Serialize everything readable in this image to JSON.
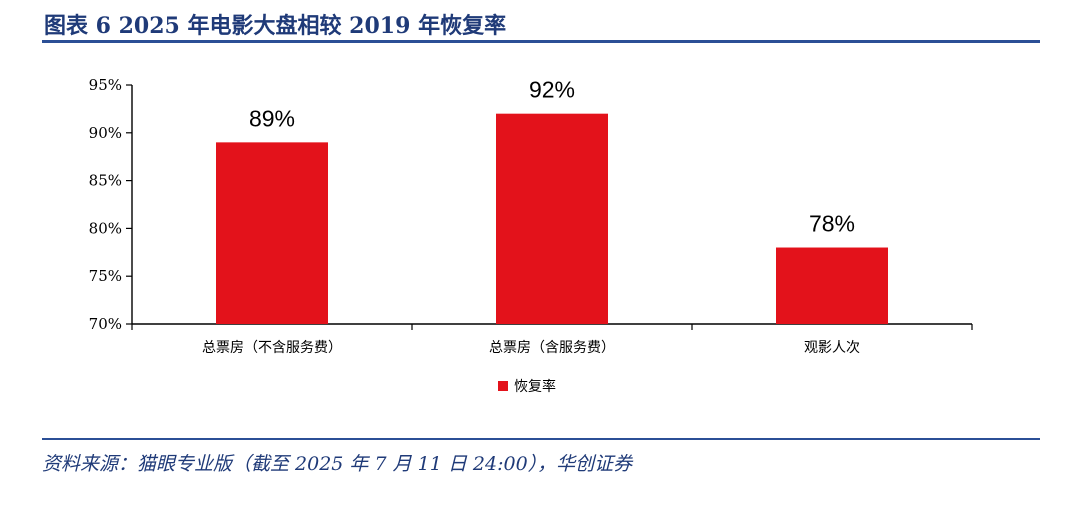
{
  "figure": {
    "title": "图表 6 2025 年电影大盘相较 2019 年恢复率",
    "source": "资料来源：猫眼专业版（截至 2025 年 7 月 11 日 24:00），华创证券"
  },
  "colors": {
    "accent": "#2b4f96",
    "bar": "#e3121b"
  },
  "chart_data": {
    "type": "bar",
    "categories": [
      "总票房（不含服务费）",
      "总票房（含服务费）",
      "观影人次"
    ],
    "series": [
      {
        "name": "恢复率",
        "values": [
          89,
          92,
          78
        ]
      }
    ],
    "data_labels": [
      "89%",
      "92%",
      "78%"
    ],
    "ylim": [
      70,
      95
    ],
    "yticks": [
      70,
      75,
      80,
      85,
      90,
      95
    ],
    "ytick_labels": [
      "70%",
      "75%",
      "80%",
      "85%",
      "90%",
      "95%"
    ],
    "grid": false,
    "legend": "bottom",
    "title": "",
    "xlabel": "",
    "ylabel": ""
  }
}
